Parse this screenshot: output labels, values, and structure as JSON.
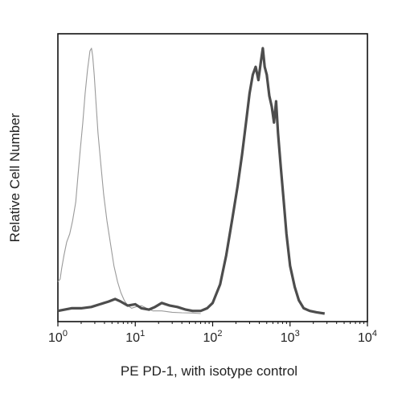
{
  "chart_data": {
    "type": "line",
    "title": "",
    "xlabel": "PE PD-1, with isotype control",
    "ylabel": "Relative Cell Number",
    "x_scale": "log",
    "xlim": [
      1,
      10000
    ],
    "ylim": [
      0,
      1
    ],
    "grid": false,
    "x_ticks": [
      {
        "value": 1,
        "base": "10",
        "exp": "0"
      },
      {
        "value": 10,
        "base": "10",
        "exp": "1"
      },
      {
        "value": 100,
        "base": "10",
        "exp": "2"
      },
      {
        "value": 1000,
        "base": "10",
        "exp": "3"
      },
      {
        "value": 10000,
        "base": "10",
        "exp": "4"
      }
    ],
    "series": [
      {
        "role": "isotype control",
        "color": "#9a9a9a",
        "x": [
          1.0,
          1.07,
          1.12,
          1.2,
          1.3,
          1.42,
          1.55,
          1.7,
          1.82,
          1.95,
          2.1,
          2.25,
          2.42,
          2.6,
          2.72,
          2.82,
          2.95,
          3.1,
          3.3,
          3.6,
          3.9,
          4.3,
          4.8,
          5.3,
          5.9,
          6.5,
          7.2,
          8.0,
          9.0,
          10.0,
          12.0,
          14.0,
          17.0,
          22.0,
          30.0,
          40.0,
          55.0,
          70.0
        ],
        "y": [
          0.12,
          0.13,
          0.17,
          0.22,
          0.27,
          0.3,
          0.35,
          0.42,
          0.52,
          0.62,
          0.72,
          0.83,
          0.92,
          0.99,
          1.0,
          0.97,
          0.9,
          0.8,
          0.68,
          0.56,
          0.45,
          0.35,
          0.26,
          0.18,
          0.12,
          0.08,
          0.05,
          0.03,
          0.02,
          0.025,
          0.03,
          0.02,
          0.01,
          0.01,
          0.005,
          0.003,
          0.002,
          0.0
        ]
      },
      {
        "role": "PE PD-1",
        "color": "#4d4d4d",
        "x": [
          1.0,
          1.5,
          2.0,
          2.7,
          3.5,
          4.5,
          5.5,
          6.5,
          8.0,
          10.0,
          12.0,
          15.0,
          18.0,
          22.0,
          28.0,
          35.0,
          45.0,
          55.0,
          70.0,
          85.0,
          100.0,
          125.0,
          150.0,
          180.0,
          210.0,
          240.0,
          270.0,
          300.0,
          330.0,
          360.0,
          390.0,
          420.0,
          445.0,
          470.0,
          500.0,
          540.0,
          580.0,
          620.0,
          660.0,
          700.0,
          760.0,
          830.0,
          900.0,
          1000.0,
          1150.0,
          1300.0,
          1500.0,
          1800.0,
          2200.0,
          2800.0
        ],
        "y": [
          0.01,
          0.02,
          0.02,
          0.025,
          0.035,
          0.045,
          0.055,
          0.045,
          0.03,
          0.035,
          0.02,
          0.015,
          0.025,
          0.04,
          0.03,
          0.025,
          0.015,
          0.01,
          0.01,
          0.02,
          0.04,
          0.11,
          0.22,
          0.36,
          0.48,
          0.6,
          0.72,
          0.83,
          0.9,
          0.93,
          0.88,
          0.95,
          1.0,
          0.93,
          0.9,
          0.82,
          0.78,
          0.72,
          0.8,
          0.68,
          0.55,
          0.42,
          0.3,
          0.18,
          0.1,
          0.05,
          0.02,
          0.01,
          0.005,
          0.0
        ]
      }
    ]
  }
}
